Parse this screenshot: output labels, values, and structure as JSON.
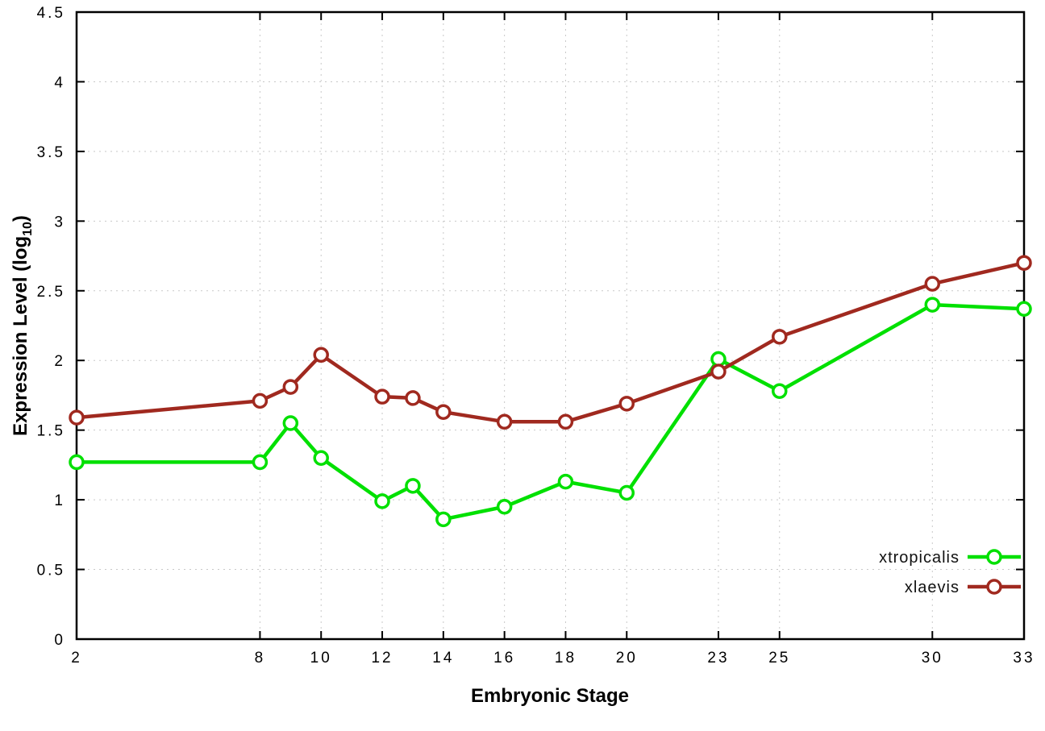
{
  "page": {
    "background": "#ffffff"
  },
  "axes": {
    "xlabel": "Embryonic Stage",
    "ylabel_prefix": "Expression Level (log",
    "ylabel_sub": "10",
    "ylabel_suffix": ")"
  },
  "chart_data": {
    "type": "line",
    "title": "",
    "xlabel": "Embryonic Stage",
    "ylabel": "Expression Level (log_10)",
    "xlim": [
      2,
      33
    ],
    "ylim": [
      0,
      4.5
    ],
    "grid": true,
    "legend_position": "bottom-right",
    "x_ticks": [
      2,
      8,
      10,
      12,
      14,
      16,
      18,
      20,
      23,
      25,
      30,
      33
    ],
    "x_tick_labels": [
      "2",
      "8",
      "10",
      "12",
      "14",
      "16",
      "18",
      "20",
      "23",
      "25",
      "30",
      "33"
    ],
    "y_ticks": [
      0,
      0.5,
      1,
      1.5,
      2,
      2.5,
      3,
      3.5,
      4,
      4.5
    ],
    "y_tick_labels": [
      "0",
      "0.5",
      "1",
      "1.5",
      "2",
      "2.5",
      "3",
      "3.5",
      "4",
      "4.5"
    ],
    "x": [
      2,
      8,
      9,
      10,
      12,
      13,
      14,
      16,
      18,
      20,
      23,
      25,
      30,
      33
    ],
    "series": [
      {
        "name": "xtropicalis",
        "color": "#00e000",
        "values": [
          1.27,
          1.27,
          1.55,
          1.3,
          0.99,
          1.1,
          0.86,
          0.95,
          1.13,
          1.05,
          2.01,
          1.78,
          2.4,
          2.37
        ]
      },
      {
        "name": "xlaevis",
        "color": "#a0291f",
        "values": [
          1.59,
          1.71,
          1.81,
          2.04,
          1.74,
          1.73,
          1.63,
          1.56,
          1.56,
          1.69,
          1.92,
          2.17,
          2.55,
          2.7
        ]
      }
    ]
  }
}
